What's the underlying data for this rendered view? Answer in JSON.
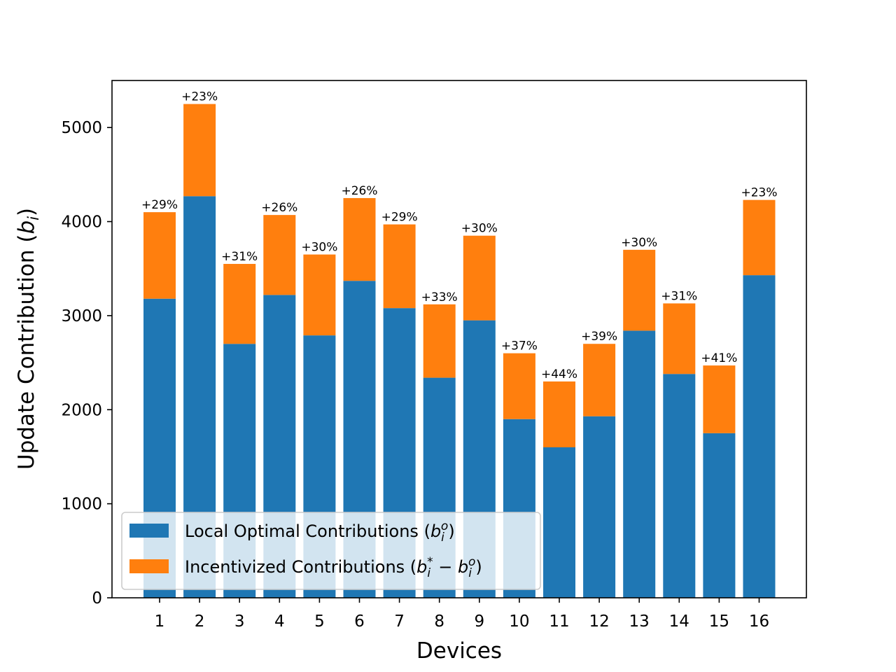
{
  "chart_data": {
    "type": "bar",
    "stacked": true,
    "categories": [
      "1",
      "2",
      "3",
      "4",
      "5",
      "6",
      "7",
      "8",
      "9",
      "10",
      "11",
      "12",
      "13",
      "14",
      "15",
      "16"
    ],
    "series": [
      {
        "name": "Local Optimal Contributions",
        "color": "#1f77b4",
        "values": [
          3180,
          4270,
          2700,
          3220,
          2790,
          3370,
          3080,
          2340,
          2950,
          1900,
          1600,
          1930,
          2840,
          2380,
          1750,
          3430
        ]
      },
      {
        "name": "Incentivized Contributions",
        "color": "#ff7f0e",
        "values": [
          920,
          980,
          850,
          850,
          860,
          880,
          890,
          780,
          900,
          700,
          700,
          770,
          860,
          750,
          720,
          800
        ]
      }
    ],
    "data_labels": [
      "+29%",
      "+23%",
      "+31%",
      "+26%",
      "+30%",
      "+26%",
      "+29%",
      "+33%",
      "+30%",
      "+37%",
      "+44%",
      "+39%",
      "+30%",
      "+31%",
      "+41%",
      "+23%"
    ],
    "xlabel": "Devices",
    "ylabel": "Update Contribution",
    "ylabel_symbol": "b",
    "ylabel_subscript": "i",
    "ylim": [
      0,
      5500
    ],
    "yticks": [
      0,
      1000,
      2000,
      3000,
      4000,
      5000
    ],
    "grid": false,
    "legend_position": "lower-left",
    "legend": [
      {
        "text": "Local Optimal Contributions",
        "math": "(b_i^o)"
      },
      {
        "text": "Incentivized Contributions",
        "math": "(b_i^* − b_i^o)"
      }
    ]
  }
}
